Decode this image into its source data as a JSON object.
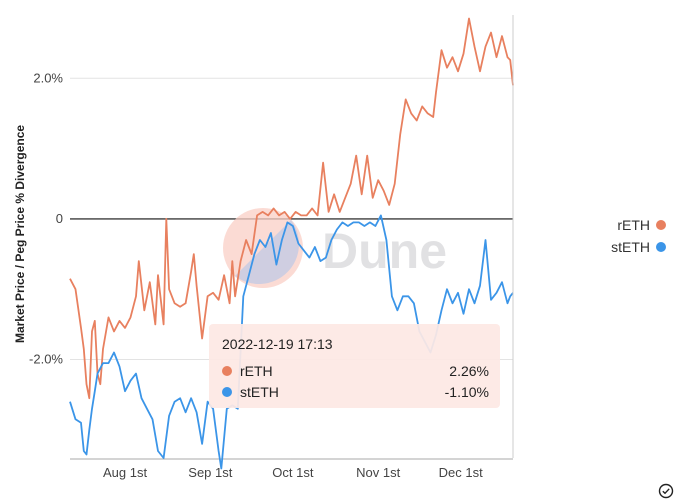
{
  "chart_data": {
    "type": "line",
    "title": "",
    "ylabel": "Market Price / Peg Price % Divergence",
    "xlabel": "",
    "x_range": [
      "2022-07-12",
      "2022-12-20"
    ],
    "ylim": [
      -3.4,
      2.9
    ],
    "y_ticks": [
      {
        "value": 2.0,
        "label": "2.0%"
      },
      {
        "value": 0,
        "label": "0"
      },
      {
        "value": -2.0,
        "label": "-2.0%"
      }
    ],
    "x_ticks": [
      {
        "date": "2022-08-01",
        "label": "Aug 1st"
      },
      {
        "date": "2022-09-01",
        "label": "Sep 1st"
      },
      {
        "date": "2022-10-01",
        "label": "Oct 1st"
      },
      {
        "date": "2022-11-01",
        "label": "Nov 1st"
      },
      {
        "date": "2022-12-01",
        "label": "Dec 1st"
      }
    ],
    "grid": true,
    "legend_position": "right",
    "series": [
      {
        "name": "rETH",
        "color": "#e8805f",
        "points": [
          [
            "2022-07-12",
            -0.85
          ],
          [
            "2022-07-14",
            -1.0
          ],
          [
            "2022-07-16",
            -1.55
          ],
          [
            "2022-07-17",
            -1.85
          ],
          [
            "2022-07-18",
            -2.35
          ],
          [
            "2022-07-19",
            -2.55
          ],
          [
            "2022-07-20",
            -1.6
          ],
          [
            "2022-07-21",
            -1.45
          ],
          [
            "2022-07-22",
            -2.2
          ],
          [
            "2022-07-23",
            -2.35
          ],
          [
            "2022-07-24",
            -1.85
          ],
          [
            "2022-07-26",
            -1.4
          ],
          [
            "2022-07-28",
            -1.6
          ],
          [
            "2022-07-30",
            -1.45
          ],
          [
            "2022-08-01",
            -1.55
          ],
          [
            "2022-08-03",
            -1.4
          ],
          [
            "2022-08-05",
            -1.1
          ],
          [
            "2022-08-06",
            -0.6
          ],
          [
            "2022-08-08",
            -1.3
          ],
          [
            "2022-08-10",
            -0.9
          ],
          [
            "2022-08-12",
            -1.5
          ],
          [
            "2022-08-13",
            -0.8
          ],
          [
            "2022-08-15",
            -1.5
          ],
          [
            "2022-08-16",
            0.0
          ],
          [
            "2022-08-17",
            -1.0
          ],
          [
            "2022-08-19",
            -1.2
          ],
          [
            "2022-08-21",
            -1.25
          ],
          [
            "2022-08-23",
            -1.2
          ],
          [
            "2022-08-25",
            -0.75
          ],
          [
            "2022-08-26",
            -0.5
          ],
          [
            "2022-08-27",
            -0.95
          ],
          [
            "2022-08-29",
            -1.7
          ],
          [
            "2022-08-31",
            -1.1
          ],
          [
            "2022-09-02",
            -1.05
          ],
          [
            "2022-09-04",
            -1.15
          ],
          [
            "2022-09-06",
            -0.8
          ],
          [
            "2022-09-08",
            -1.2
          ],
          [
            "2022-09-09",
            -0.6
          ],
          [
            "2022-09-10",
            -1.1
          ],
          [
            "2022-09-12",
            -0.6
          ],
          [
            "2022-09-14",
            -0.3
          ],
          [
            "2022-09-16",
            -0.5
          ],
          [
            "2022-09-18",
            0.05
          ],
          [
            "2022-09-20",
            0.1
          ],
          [
            "2022-09-22",
            0.05
          ],
          [
            "2022-09-24",
            0.15
          ],
          [
            "2022-09-26",
            0.05
          ],
          [
            "2022-09-28",
            0.1
          ],
          [
            "2022-09-30",
            0.0
          ],
          [
            "2022-10-02",
            0.1
          ],
          [
            "2022-10-04",
            0.05
          ],
          [
            "2022-10-06",
            0.05
          ],
          [
            "2022-10-08",
            0.15
          ],
          [
            "2022-10-10",
            0.05
          ],
          [
            "2022-10-12",
            0.8
          ],
          [
            "2022-10-14",
            0.1
          ],
          [
            "2022-10-16",
            0.35
          ],
          [
            "2022-10-18",
            0.1
          ],
          [
            "2022-10-20",
            0.3
          ],
          [
            "2022-10-22",
            0.5
          ],
          [
            "2022-10-24",
            0.9
          ],
          [
            "2022-10-26",
            0.35
          ],
          [
            "2022-10-28",
            0.9
          ],
          [
            "2022-10-30",
            0.3
          ],
          [
            "2022-11-01",
            0.55
          ],
          [
            "2022-11-03",
            0.4
          ],
          [
            "2022-11-05",
            0.2
          ],
          [
            "2022-11-07",
            0.5
          ],
          [
            "2022-11-09",
            1.2
          ],
          [
            "2022-11-11",
            1.7
          ],
          [
            "2022-11-13",
            1.5
          ],
          [
            "2022-11-15",
            1.4
          ],
          [
            "2022-11-17",
            1.6
          ],
          [
            "2022-11-19",
            1.5
          ],
          [
            "2022-11-21",
            1.45
          ],
          [
            "2022-11-22",
            1.8
          ],
          [
            "2022-11-24",
            2.4
          ],
          [
            "2022-11-26",
            2.15
          ],
          [
            "2022-11-28",
            2.3
          ],
          [
            "2022-11-30",
            2.1
          ],
          [
            "2022-12-02",
            2.35
          ],
          [
            "2022-12-04",
            2.85
          ],
          [
            "2022-12-06",
            2.45
          ],
          [
            "2022-12-08",
            2.1
          ],
          [
            "2022-12-10",
            2.45
          ],
          [
            "2022-12-12",
            2.65
          ],
          [
            "2022-12-14",
            2.3
          ],
          [
            "2022-12-16",
            2.6
          ],
          [
            "2022-12-18",
            2.3
          ],
          [
            "2022-12-19",
            2.26
          ],
          [
            "2022-12-20",
            1.9
          ]
        ]
      },
      {
        "name": "stETH",
        "color": "#3b95e8",
        "points": [
          [
            "2022-07-12",
            -2.6
          ],
          [
            "2022-07-14",
            -2.85
          ],
          [
            "2022-07-16",
            -2.9
          ],
          [
            "2022-07-17",
            -3.3
          ],
          [
            "2022-07-18",
            -3.35
          ],
          [
            "2022-07-19",
            -3.0
          ],
          [
            "2022-07-20",
            -2.7
          ],
          [
            "2022-07-21",
            -2.45
          ],
          [
            "2022-07-22",
            -2.2
          ],
          [
            "2022-07-24",
            -2.05
          ],
          [
            "2022-07-26",
            -2.05
          ],
          [
            "2022-07-28",
            -1.9
          ],
          [
            "2022-07-30",
            -2.1
          ],
          [
            "2022-08-01",
            -2.45
          ],
          [
            "2022-08-03",
            -2.3
          ],
          [
            "2022-08-05",
            -2.2
          ],
          [
            "2022-08-07",
            -2.55
          ],
          [
            "2022-08-09",
            -2.7
          ],
          [
            "2022-08-11",
            -2.85
          ],
          [
            "2022-08-13",
            -3.3
          ],
          [
            "2022-08-15",
            -3.4
          ],
          [
            "2022-08-17",
            -2.8
          ],
          [
            "2022-08-19",
            -2.6
          ],
          [
            "2022-08-21",
            -2.55
          ],
          [
            "2022-08-23",
            -2.75
          ],
          [
            "2022-08-25",
            -2.55
          ],
          [
            "2022-08-27",
            -2.75
          ],
          [
            "2022-08-29",
            -3.2
          ],
          [
            "2022-08-31",
            -2.6
          ],
          [
            "2022-09-02",
            -2.7
          ],
          [
            "2022-09-04",
            -3.3
          ],
          [
            "2022-09-05",
            -3.55
          ],
          [
            "2022-09-07",
            -2.7
          ],
          [
            "2022-09-09",
            -2.65
          ],
          [
            "2022-09-11",
            -2.7
          ],
          [
            "2022-09-13",
            -1.1
          ],
          [
            "2022-09-15",
            -0.8
          ],
          [
            "2022-09-17",
            -0.5
          ],
          [
            "2022-09-19",
            -0.3
          ],
          [
            "2022-09-21",
            -0.4
          ],
          [
            "2022-09-23",
            -0.2
          ],
          [
            "2022-09-25",
            -0.65
          ],
          [
            "2022-09-27",
            -0.3
          ],
          [
            "2022-09-29",
            -0.05
          ],
          [
            "2022-10-01",
            -0.1
          ],
          [
            "2022-10-03",
            -0.35
          ],
          [
            "2022-10-05",
            -0.45
          ],
          [
            "2022-10-07",
            -0.55
          ],
          [
            "2022-10-09",
            -0.4
          ],
          [
            "2022-10-11",
            -0.6
          ],
          [
            "2022-10-13",
            -0.55
          ],
          [
            "2022-10-15",
            -0.3
          ],
          [
            "2022-10-17",
            -0.15
          ],
          [
            "2022-10-19",
            -0.05
          ],
          [
            "2022-10-21",
            -0.1
          ],
          [
            "2022-10-23",
            -0.05
          ],
          [
            "2022-10-25",
            -0.05
          ],
          [
            "2022-10-27",
            -0.1
          ],
          [
            "2022-10-29",
            -0.05
          ],
          [
            "2022-10-31",
            -0.1
          ],
          [
            "2022-11-02",
            0.05
          ],
          [
            "2022-11-04",
            -0.3
          ],
          [
            "2022-11-06",
            -1.1
          ],
          [
            "2022-11-08",
            -1.3
          ],
          [
            "2022-11-10",
            -1.1
          ],
          [
            "2022-11-12",
            -1.1
          ],
          [
            "2022-11-14",
            -1.2
          ],
          [
            "2022-11-16",
            -1.6
          ],
          [
            "2022-11-18",
            -1.75
          ],
          [
            "2022-11-20",
            -1.9
          ],
          [
            "2022-11-22",
            -1.65
          ],
          [
            "2022-11-24",
            -1.3
          ],
          [
            "2022-11-26",
            -1.0
          ],
          [
            "2022-11-28",
            -1.2
          ],
          [
            "2022-11-30",
            -1.05
          ],
          [
            "2022-12-02",
            -1.35
          ],
          [
            "2022-12-04",
            -1.0
          ],
          [
            "2022-12-06",
            -1.2
          ],
          [
            "2022-12-08",
            -0.95
          ],
          [
            "2022-12-10",
            -0.3
          ],
          [
            "2022-12-12",
            -1.15
          ],
          [
            "2022-12-14",
            -1.05
          ],
          [
            "2022-12-16",
            -0.9
          ],
          [
            "2022-12-18",
            -1.2
          ],
          [
            "2022-12-19",
            -1.1
          ],
          [
            "2022-12-20",
            -1.05
          ]
        ]
      }
    ],
    "tooltip": {
      "title": "2022-12-19 17:13",
      "rows": [
        {
          "name": "rETH",
          "value": "2.26%",
          "color": "#e8805f"
        },
        {
          "name": "stETH",
          "value": "-1.10%",
          "color": "#3b95e8"
        }
      ]
    },
    "watermark": "Dune"
  },
  "icons": {
    "corner": "check-circle-icon"
  }
}
